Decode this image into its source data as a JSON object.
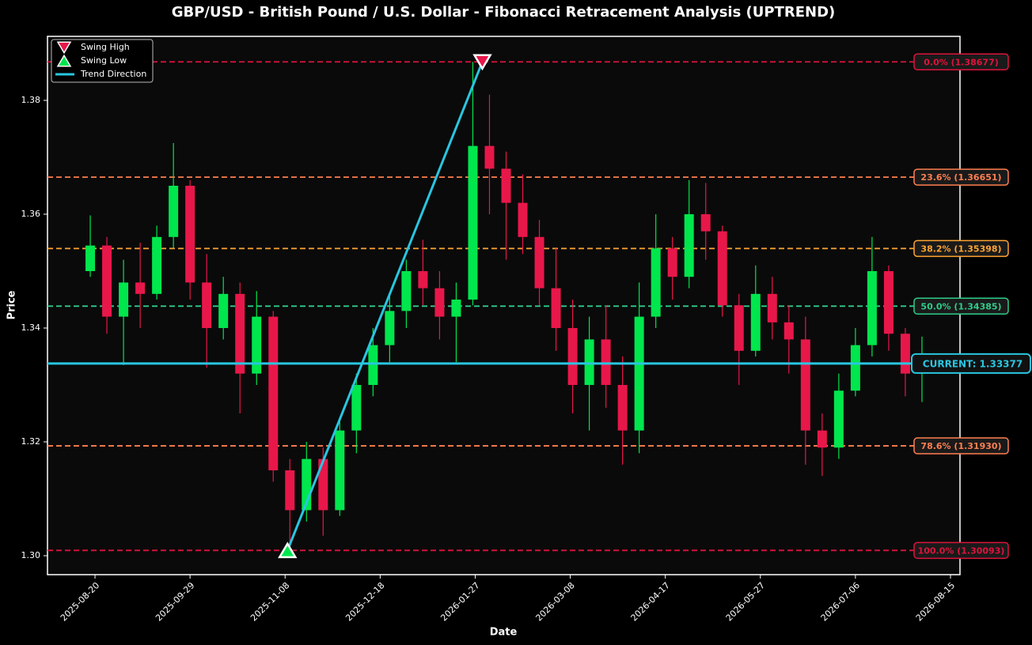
{
  "chart_data": {
    "type": "candlestick",
    "title": "GBP/USD - British Pound / U.S. Dollar - Fibonacci Retracement Analysis (UPTREND)",
    "x_label": "Date",
    "y_label": "Price",
    "xlim": [
      "2025-07-31",
      "2026-08-19"
    ],
    "xticks": [
      "2025-08-20",
      "2025-09-29",
      "2025-11-08",
      "2025-12-18",
      "2026-01-27",
      "2026-03-08",
      "2026-04-17",
      "2026-05-27",
      "2026-07-06",
      "2026-08-15"
    ],
    "ylim": [
      1.29667,
      1.39125
    ],
    "yticks": [
      {
        "value": 1.3,
        "label": "1.30"
      },
      1.32,
      1.34,
      1.36,
      1.38
    ],
    "up_color": "#00e64d",
    "down_color": "#e8174a",
    "x": [
      "2025-08-18",
      "2025-08-25",
      "2025-09-01",
      "2025-09-08",
      "2025-09-15",
      "2025-09-22",
      "2025-09-29",
      "2025-10-06",
      "2025-10-13",
      "2025-10-20",
      "2025-10-27",
      "2025-11-03",
      "2025-11-10",
      "2025-11-17",
      "2025-11-24",
      "2025-12-01",
      "2025-12-08",
      "2025-12-15",
      "2025-12-22",
      "2025-12-29",
      "2026-01-05",
      "2026-01-12",
      "2026-01-19",
      "2026-01-26",
      "2026-02-02",
      "2026-02-09",
      "2026-02-16",
      "2026-02-23",
      "2026-03-02",
      "2026-03-09",
      "2026-03-16",
      "2026-03-23",
      "2026-03-30",
      "2026-04-06",
      "2026-04-13",
      "2026-04-20",
      "2026-04-27",
      "2026-05-04",
      "2026-05-11",
      "2026-05-18",
      "2026-05-25",
      "2026-06-01",
      "2026-06-08",
      "2026-06-15",
      "2026-06-22",
      "2026-06-29",
      "2026-07-06",
      "2026-07-13",
      "2026-07-20",
      "2026-07-27",
      "2026-08-03"
    ],
    "open": [
      1.35,
      1.3545,
      1.342,
      1.348,
      1.346,
      1.356,
      1.365,
      1.348,
      1.34,
      1.346,
      1.332,
      1.342,
      1.315,
      1.308,
      1.317,
      1.308,
      1.322,
      1.33,
      1.337,
      1.343,
      1.35,
      1.347,
      1.342,
      1.345,
      1.372,
      1.368,
      1.362,
      1.356,
      1.347,
      1.34,
      1.33,
      1.338,
      1.33,
      1.322,
      1.342,
      1.354,
      1.349,
      1.36,
      1.357,
      1.344,
      1.336,
      1.346,
      1.341,
      1.338,
      1.322,
      1.319,
      1.329,
      1.337,
      1.35,
      1.339,
      1.332
    ],
    "high": [
      1.3598,
      1.356,
      1.352,
      1.355,
      1.358,
      1.3725,
      1.366,
      1.353,
      1.349,
      1.348,
      1.3465,
      1.343,
      1.317,
      1.32,
      1.319,
      1.324,
      1.332,
      1.34,
      1.346,
      1.352,
      1.3555,
      1.35,
      1.348,
      1.38677,
      1.381,
      1.371,
      1.367,
      1.359,
      1.354,
      1.345,
      1.342,
      1.344,
      1.335,
      1.348,
      1.36,
      1.356,
      1.366,
      1.3655,
      1.358,
      1.346,
      1.351,
      1.349,
      1.344,
      1.342,
      1.325,
      1.332,
      1.34,
      1.356,
      1.351,
      1.34,
      1.3385
    ],
    "low": [
      1.349,
      1.339,
      1.3335,
      1.34,
      1.345,
      1.354,
      1.345,
      1.333,
      1.338,
      1.325,
      1.33,
      1.313,
      1.30093,
      1.306,
      1.3035,
      1.307,
      1.318,
      1.328,
      1.334,
      1.34,
      1.344,
      1.338,
      1.334,
      1.344,
      1.36,
      1.352,
      1.353,
      1.344,
      1.336,
      1.325,
      1.322,
      1.326,
      1.316,
      1.318,
      1.34,
      1.345,
      1.347,
      1.352,
      1.342,
      1.33,
      1.335,
      1.338,
      1.332,
      1.316,
      1.314,
      1.317,
      1.328,
      1.335,
      1.336,
      1.328,
      1.327
    ],
    "close": [
      1.3545,
      1.342,
      1.348,
      1.346,
      1.356,
      1.365,
      1.348,
      1.34,
      1.346,
      1.332,
      1.342,
      1.315,
      1.308,
      1.317,
      1.308,
      1.322,
      1.33,
      1.337,
      1.343,
      1.35,
      1.347,
      1.342,
      1.345,
      1.372,
      1.368,
      1.362,
      1.356,
      1.347,
      1.34,
      1.33,
      1.338,
      1.33,
      1.322,
      1.342,
      1.354,
      1.349,
      1.36,
      1.357,
      1.344,
      1.336,
      1.346,
      1.341,
      1.338,
      1.322,
      1.319,
      1.329,
      1.337,
      1.35,
      1.339,
      1.332,
      1.33377
    ],
    "fib_levels": {
      "values": [
        1.38677,
        1.36651,
        1.35398,
        1.34385,
        1.3193,
        1.30093
      ],
      "value_labels": [
        "0.0% (1.38677)",
        "23.6% (1.36651)",
        "38.2% (1.35398)",
        "50.0% (1.34385)",
        "78.6% (1.31930)",
        "100.0% (1.30093)"
      ],
      "colors": [
        "#dc143c",
        "#ff7f50",
        "#ffa531",
        "#2ecc8a",
        "#ff7f50",
        "#dc143c"
      ]
    },
    "current": {
      "value": 1.33377,
      "label": "CURRENT: 1.33377",
      "color": "#29c6e0"
    },
    "swing_high": {
      "name": "Swing High",
      "x": "2026-01-30",
      "value": 1.38677,
      "color": "#e8174a"
    },
    "swing_low": {
      "name": "Swing Low",
      "x": "2025-11-09",
      "value": 1.30093,
      "color": "#00e64d"
    },
    "trend": {
      "name": "Trend Direction",
      "color": "#29c6e0"
    }
  }
}
